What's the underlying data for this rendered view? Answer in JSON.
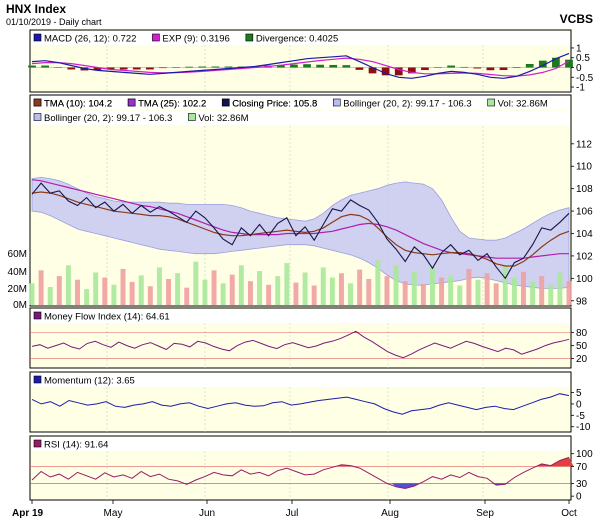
{
  "header": {
    "title": "HNX Index",
    "subtitle": "01/10/2019 - Daily chart",
    "brand": "VCBS"
  },
  "colors": {
    "panel_bg": "#ffffe6",
    "band_fill": "#c8caf2",
    "band_line": "#8a8fe0",
    "close": "#15154a",
    "tma10": "#8b3a1a",
    "tma25": "#b01eb0",
    "macd": "#1a1aa8",
    "exp": "#d020d0",
    "div_pos": "#1c7a1c",
    "div_neg": "#8a1010",
    "vol_up": "#a8e89a",
    "vol_down": "#f0a0a0",
    "mfi": "#7a1a7a",
    "momentum": "#1c1ca8",
    "rsi": "#9a1a6a",
    "rsi_over": "#e04040",
    "rsi_under": "#5050d0"
  },
  "x_axis": {
    "labels": [
      "Apr 19",
      "May",
      "Jun",
      "Jul",
      "Aug",
      "Sep",
      "Oct"
    ]
  },
  "legends": {
    "macd": [
      {
        "label": "MACD (26, 12): 0.722",
        "color": "#1a1aa8"
      },
      {
        "label": "EXP (9): 0.3196",
        "color": "#d020d0"
      },
      {
        "label": "Divergence: 0.4025",
        "color": "#1c7a1c"
      }
    ],
    "price": [
      {
        "label": "TMA (10): 104.2",
        "color": "#8b3a1a"
      },
      {
        "label": "TMA (25): 102.2",
        "color": "#9a30d0"
      },
      {
        "label": "Closing Price: 105.8",
        "color": "#15154a"
      },
      {
        "label": "Bollinger (20, 2): 99.17 - 106.3",
        "color": "#b8bcf0"
      },
      {
        "label": "Vol: 32.86M",
        "color": "#a8e89a"
      }
    ],
    "mfi": [
      {
        "label": "Money Flow Index (14): 64.61",
        "color": "#7a1a7a"
      }
    ],
    "momentum": [
      {
        "label": "Momentum (12): 3.65",
        "color": "#1c1ca8"
      }
    ],
    "rsi": [
      {
        "label": "RSI (14): 91.64",
        "color": "#9a1a6a"
      }
    ]
  },
  "chart_data": [
    {
      "type": "line",
      "panel": "macd",
      "y_ticks": [
        "1",
        "0.5",
        "0",
        "-0.5",
        "-1"
      ],
      "ylim": [
        -1.1,
        1.1
      ],
      "series": [
        {
          "name": "MACD (26, 12)",
          "values": [
            0.3,
            0.35,
            0.25,
            0.1,
            -0.05,
            -0.15,
            -0.2,
            -0.25,
            -0.3,
            -0.35,
            -0.3,
            -0.25,
            -0.2,
            -0.15,
            -0.1,
            -0.05,
            0.0,
            0.05,
            0.15,
            0.25,
            0.35,
            0.45,
            0.5,
            0.55,
            0.6,
            0.3,
            0.0,
            -0.3,
            -0.5,
            -0.55,
            -0.45,
            -0.3,
            -0.2,
            -0.25,
            -0.35,
            -0.5,
            -0.55,
            -0.45,
            -0.2,
            0.1,
            0.45,
            0.72
          ]
        },
        {
          "name": "EXP (9)",
          "values": [
            0.2,
            0.25,
            0.25,
            0.2,
            0.1,
            0.0,
            -0.1,
            -0.15,
            -0.2,
            -0.25,
            -0.27,
            -0.26,
            -0.24,
            -0.2,
            -0.15,
            -0.1,
            -0.05,
            0.0,
            0.05,
            0.12,
            0.2,
            0.28,
            0.36,
            0.42,
            0.48,
            0.42,
            0.3,
            0.1,
            -0.1,
            -0.25,
            -0.32,
            -0.32,
            -0.3,
            -0.28,
            -0.3,
            -0.36,
            -0.42,
            -0.44,
            -0.38,
            -0.25,
            -0.05,
            0.32
          ]
        },
        {
          "name": "Divergence",
          "values": [
            0.1,
            0.1,
            0.0,
            -0.1,
            -0.15,
            -0.15,
            -0.1,
            -0.1,
            -0.1,
            -0.1,
            -0.03,
            0.01,
            0.04,
            0.05,
            0.05,
            0.05,
            0.05,
            0.05,
            0.1,
            0.13,
            0.15,
            0.17,
            0.14,
            0.13,
            0.12,
            -0.12,
            -0.3,
            -0.4,
            -0.4,
            -0.3,
            -0.13,
            0.02,
            0.1,
            0.03,
            -0.05,
            -0.14,
            -0.13,
            -0.01,
            0.18,
            0.35,
            0.5,
            0.4
          ]
        }
      ]
    },
    {
      "type": "line",
      "panel": "price",
      "y_ticks": [
        "112",
        "110",
        "108",
        "106",
        "104",
        "102",
        "100",
        "98"
      ],
      "ylim": [
        97.8,
        113.5
      ],
      "vol_ticks": [
        "60M",
        "40M",
        "20M",
        "0M"
      ],
      "vol_max": 72,
      "series": [
        {
          "name": "Closing Price",
          "values": [
            107.5,
            108.5,
            107.6,
            107.8,
            106.9,
            106.5,
            107.2,
            106.3,
            106.8,
            106.0,
            106.6,
            105.8,
            106.5,
            105.9,
            106.4,
            106.0,
            105.5,
            105.0,
            106.0,
            105.4,
            104.5,
            103.5,
            103.0,
            104.5,
            103.8,
            104.8,
            103.8,
            104.9,
            105.4,
            103.8,
            104.6,
            103.4,
            104.8,
            106.2,
            106.0,
            107.0,
            106.5,
            106.1,
            105.0,
            103.5,
            102.6,
            101.5,
            102.8,
            102.1,
            100.9,
            102.3,
            103.0,
            102.1,
            102.5,
            101.6,
            102.2,
            101.0,
            100.0,
            101.4,
            101.8,
            103.0,
            104.5,
            104.3,
            105.0,
            105.8
          ]
        },
        {
          "name": "TMA (10)",
          "values": [
            107.6,
            107.7,
            107.6,
            107.4,
            107.1,
            106.8,
            106.6,
            106.4,
            106.2,
            106.0,
            105.9,
            105.8,
            105.7,
            105.6,
            105.6,
            105.5,
            105.3,
            105.0,
            104.7,
            104.4,
            104.1,
            103.9,
            103.8,
            103.8,
            103.9,
            104.0,
            104.1,
            104.2,
            104.3,
            104.2,
            104.1,
            104.2,
            104.5,
            105.0,
            105.5,
            105.7,
            105.6,
            105.2,
            104.5,
            103.7,
            103.0,
            102.5,
            102.3,
            102.2,
            102.1,
            102.2,
            102.3,
            102.3,
            102.2,
            102.0,
            101.7,
            101.3,
            101.1,
            101.1,
            101.5,
            102.1,
            102.8,
            103.4,
            103.9,
            104.2
          ]
        },
        {
          "name": "TMA (25)",
          "values": [
            108.8,
            108.7,
            108.5,
            108.3,
            108.1,
            107.9,
            107.7,
            107.5,
            107.3,
            107.1,
            106.9,
            106.7,
            106.5,
            106.4,
            106.2,
            106.0,
            105.8,
            105.5,
            105.2,
            104.9,
            104.6,
            104.3,
            104.1,
            104.0,
            103.9,
            103.9,
            103.9,
            103.9,
            104.0,
            104.0,
            104.0,
            104.0,
            104.1,
            104.2,
            104.4,
            104.6,
            104.8,
            104.9,
            104.8,
            104.6,
            104.3,
            103.9,
            103.5,
            103.1,
            102.8,
            102.5,
            102.3,
            102.2,
            102.1,
            102.0,
            101.9,
            101.8,
            101.8,
            101.8,
            101.8,
            101.9,
            102.0,
            102.1,
            102.2,
            102.2
          ]
        },
        {
          "name": "Bollinger Upper",
          "values": [
            108.9,
            109.0,
            108.9,
            108.7,
            108.4,
            108.0,
            107.6,
            107.3,
            107.1,
            106.9,
            106.8,
            106.8,
            106.8,
            106.8,
            106.8,
            106.7,
            106.7,
            106.6,
            106.6,
            106.6,
            106.6,
            106.6,
            106.5,
            106.3,
            106.0,
            105.8,
            105.6,
            105.4,
            105.3,
            105.2,
            105.1,
            105.3,
            105.8,
            106.5,
            107.0,
            107.4,
            107.6,
            107.8,
            108.0,
            108.3,
            108.5,
            108.6,
            108.5,
            108.4,
            108.0,
            107.0,
            105.5,
            104.2,
            103.6,
            103.5,
            103.4,
            103.4,
            103.6,
            104.0,
            104.4,
            104.9,
            105.4,
            105.8,
            106.1,
            106.3
          ]
        },
        {
          "name": "Bollinger Lower",
          "values": [
            106.0,
            105.9,
            105.6,
            105.2,
            104.8,
            104.4,
            104.2,
            104.0,
            103.8,
            103.6,
            103.4,
            103.2,
            103.0,
            102.8,
            102.6,
            102.5,
            102.4,
            102.3,
            102.2,
            102.2,
            102.2,
            102.3,
            102.4,
            102.5,
            102.6,
            102.7,
            102.8,
            102.9,
            103.0,
            103.0,
            103.0,
            102.9,
            102.7,
            102.5,
            102.3,
            102.1,
            101.8,
            101.4,
            100.9,
            100.3,
            99.8,
            99.5,
            99.4,
            99.4,
            99.5,
            99.6,
            99.7,
            99.8,
            100.0,
            100.1,
            100.0,
            99.8,
            99.6,
            99.4,
            99.3,
            99.2,
            99.1,
            99.1,
            99.1,
            99.2
          ]
        },
        {
          "name": "Vol",
          "values": [
            30,
            48,
            25,
            40,
            55,
            35,
            22,
            45,
            38,
            28,
            50,
            32,
            41,
            26,
            52,
            36,
            44,
            24,
            60,
            35,
            48,
            30,
            42,
            55,
            33,
            47,
            28,
            40,
            58,
            31,
            45,
            27,
            52,
            38,
            44,
            30,
            49,
            36,
            62,
            40,
            55,
            33,
            46,
            29,
            52,
            38,
            41,
            27,
            50,
            35,
            44,
            30,
            55,
            38,
            46,
            32,
            40,
            28,
            45,
            33
          ],
          "direction": [
            "u",
            "d",
            "u",
            "d",
            "u",
            "d",
            "u",
            "u",
            "d",
            "u",
            "d",
            "d",
            "u",
            "d",
            "u",
            "d",
            "u",
            "d",
            "u",
            "u",
            "d",
            "u",
            "d",
            "u",
            "d",
            "u",
            "d",
            "u",
            "u",
            "d",
            "u",
            "d",
            "u",
            "u",
            "d",
            "u",
            "d",
            "d",
            "u",
            "d",
            "u",
            "d",
            "u",
            "d",
            "u",
            "d",
            "u",
            "u",
            "d",
            "u",
            "d",
            "d",
            "u",
            "u",
            "d",
            "u",
            "d",
            "u",
            "u",
            "d"
          ]
        }
      ]
    },
    {
      "type": "line",
      "panel": "mfi",
      "y_ticks": [
        "80",
        "50",
        "20"
      ],
      "ylim": [
        5,
        100
      ],
      "series": [
        {
          "name": "Money Flow Index (14)",
          "values": [
            48,
            52,
            44,
            50,
            56,
            47,
            42,
            55,
            60,
            52,
            46,
            58,
            50,
            44,
            52,
            57,
            49,
            41,
            55,
            53,
            47,
            60,
            56,
            48,
            42,
            38,
            50,
            58,
            62,
            55,
            48,
            43,
            52,
            57,
            51,
            45,
            49,
            56,
            60,
            66,
            74,
            83,
            70,
            60,
            48,
            36,
            28,
            22,
            30,
            40,
            48,
            56,
            50,
            44,
            52,
            60,
            55,
            48,
            42,
            36,
            44,
            40,
            30,
            36,
            42,
            50,
            56,
            60,
            64.6
          ]
        }
      ]
    },
    {
      "type": "line",
      "panel": "momentum",
      "y_ticks": [
        "5",
        "0",
        "-5",
        "-10"
      ],
      "ylim": [
        -11,
        7
      ],
      "series": [
        {
          "name": "Momentum (12)",
          "values": [
            2,
            0,
            1,
            -1,
            1.5,
            0.5,
            -0.5,
            0,
            1,
            -1,
            -1.5,
            -0.5,
            0,
            1,
            -0.5,
            -1,
            0,
            0.5,
            -1,
            -2,
            -1,
            0,
            0.5,
            -0.5,
            -1,
            -0.8,
            0.5,
            1,
            -0.5,
            0,
            0.8,
            1.5,
            2,
            2.5,
            3,
            2,
            1,
            0,
            -2,
            -3.5,
            -4.5,
            -3,
            -2.5,
            -2,
            -0.5,
            0.5,
            -0.5,
            -1.5,
            -2.5,
            -1.5,
            -1,
            -2,
            -2.5,
            -1,
            0.5,
            2,
            3,
            4.5,
            3.65
          ]
        }
      ]
    },
    {
      "type": "area",
      "panel": "rsi",
      "y_ticks": [
        "100",
        "70",
        "30",
        "0"
      ],
      "ylim": [
        -2,
        104
      ],
      "series": [
        {
          "name": "RSI (14)",
          "values": [
            38,
            58,
            45,
            52,
            40,
            56,
            48,
            40,
            55,
            45,
            50,
            42,
            58,
            46,
            52,
            40,
            36,
            28,
            38,
            46,
            56,
            50,
            48,
            62,
            52,
            56,
            48,
            60,
            66,
            58,
            50,
            52,
            62,
            68,
            74,
            72,
            66,
            54,
            42,
            30,
            22,
            18,
            24,
            34,
            46,
            40,
            50,
            44,
            56,
            46,
            42,
            26,
            28,
            44,
            56,
            66,
            76,
            72,
            84,
            91.6
          ]
        }
      ]
    }
  ]
}
